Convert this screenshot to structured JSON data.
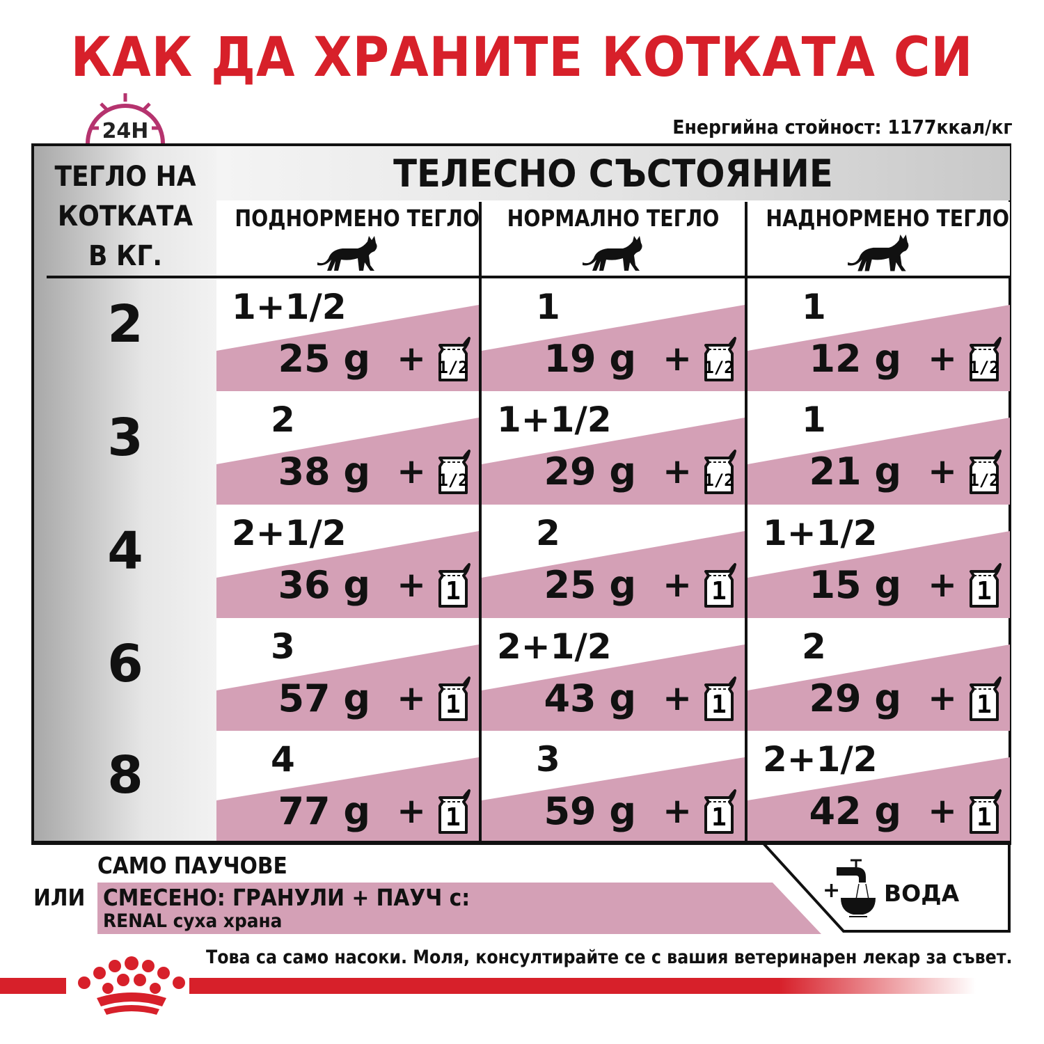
{
  "title": "КАК ДА ХРАНИТЕ КОТКАТА СИ",
  "clock_icon": {
    "name": "24h-clock-icon",
    "label": "24H",
    "color": "#b5336e"
  },
  "energy": "Енергийна стойност: 1177ккал/кг",
  "table": {
    "weight_header": [
      "ТЕГЛО НА",
      "КОТКАТА",
      "В КГ."
    ],
    "condition_header": "ТЕЛЕСНО СЪСТОЯНИЕ",
    "columns": [
      "ПОДНОРМЕНО ТЕГЛО",
      "НОРМАЛНО ТЕГЛО",
      "НАДНОРМЕНО ТЕГЛО"
    ],
    "rows": [
      {
        "weight": "2",
        "cells": [
          {
            "pouches": "1+1/2",
            "grams": "25 g",
            "pouch_extra": "1/2"
          },
          {
            "pouches": "1",
            "grams": "19 g",
            "pouch_extra": "1/2"
          },
          {
            "pouches": "1",
            "grams": "12 g",
            "pouch_extra": "1/2"
          }
        ]
      },
      {
        "weight": "3",
        "cells": [
          {
            "pouches": "2",
            "grams": "38 g",
            "pouch_extra": "1/2"
          },
          {
            "pouches": "1+1/2",
            "grams": "29 g",
            "pouch_extra": "1/2"
          },
          {
            "pouches": "1",
            "grams": "21 g",
            "pouch_extra": "1/2"
          }
        ]
      },
      {
        "weight": "4",
        "cells": [
          {
            "pouches": "2+1/2",
            "grams": "36 g",
            "pouch_extra": "1"
          },
          {
            "pouches": "2",
            "grams": "25 g",
            "pouch_extra": "1"
          },
          {
            "pouches": "1+1/2",
            "grams": "15 g",
            "pouch_extra": "1"
          }
        ]
      },
      {
        "weight": "6",
        "cells": [
          {
            "pouches": "3",
            "grams": "57 g",
            "pouch_extra": "1"
          },
          {
            "pouches": "2+1/2",
            "grams": "43 g",
            "pouch_extra": "1"
          },
          {
            "pouches": "2",
            "grams": "29 g",
            "pouch_extra": "1"
          }
        ]
      },
      {
        "weight": "8",
        "cells": [
          {
            "pouches": "4",
            "grams": "77 g",
            "pouch_extra": "1"
          },
          {
            "pouches": "3",
            "grams": "59 g",
            "pouch_extra": "1"
          },
          {
            "pouches": "2+1/2",
            "grams": "42 g",
            "pouch_extra": "1"
          }
        ]
      }
    ],
    "plus": "+"
  },
  "legend": {
    "only_pouches": "САМО ПАУЧОВЕ",
    "or": "ИЛИ",
    "mixed": "СМЕСЕНО: ГРАНУЛИ + ПАУЧ с:",
    "renal": "RENAL суха храна",
    "water_plus": "+",
    "water": "ВОДА"
  },
  "disclaimer": "Това са само насоки. Моля, консултирайте се с вашия ветеринарен лекар за съвет.",
  "colors": {
    "brand_red": "#d7202a",
    "pink": "#d4a0b6",
    "ink": "#111111"
  },
  "brand_logo": {
    "name": "crown-logo-icon"
  }
}
